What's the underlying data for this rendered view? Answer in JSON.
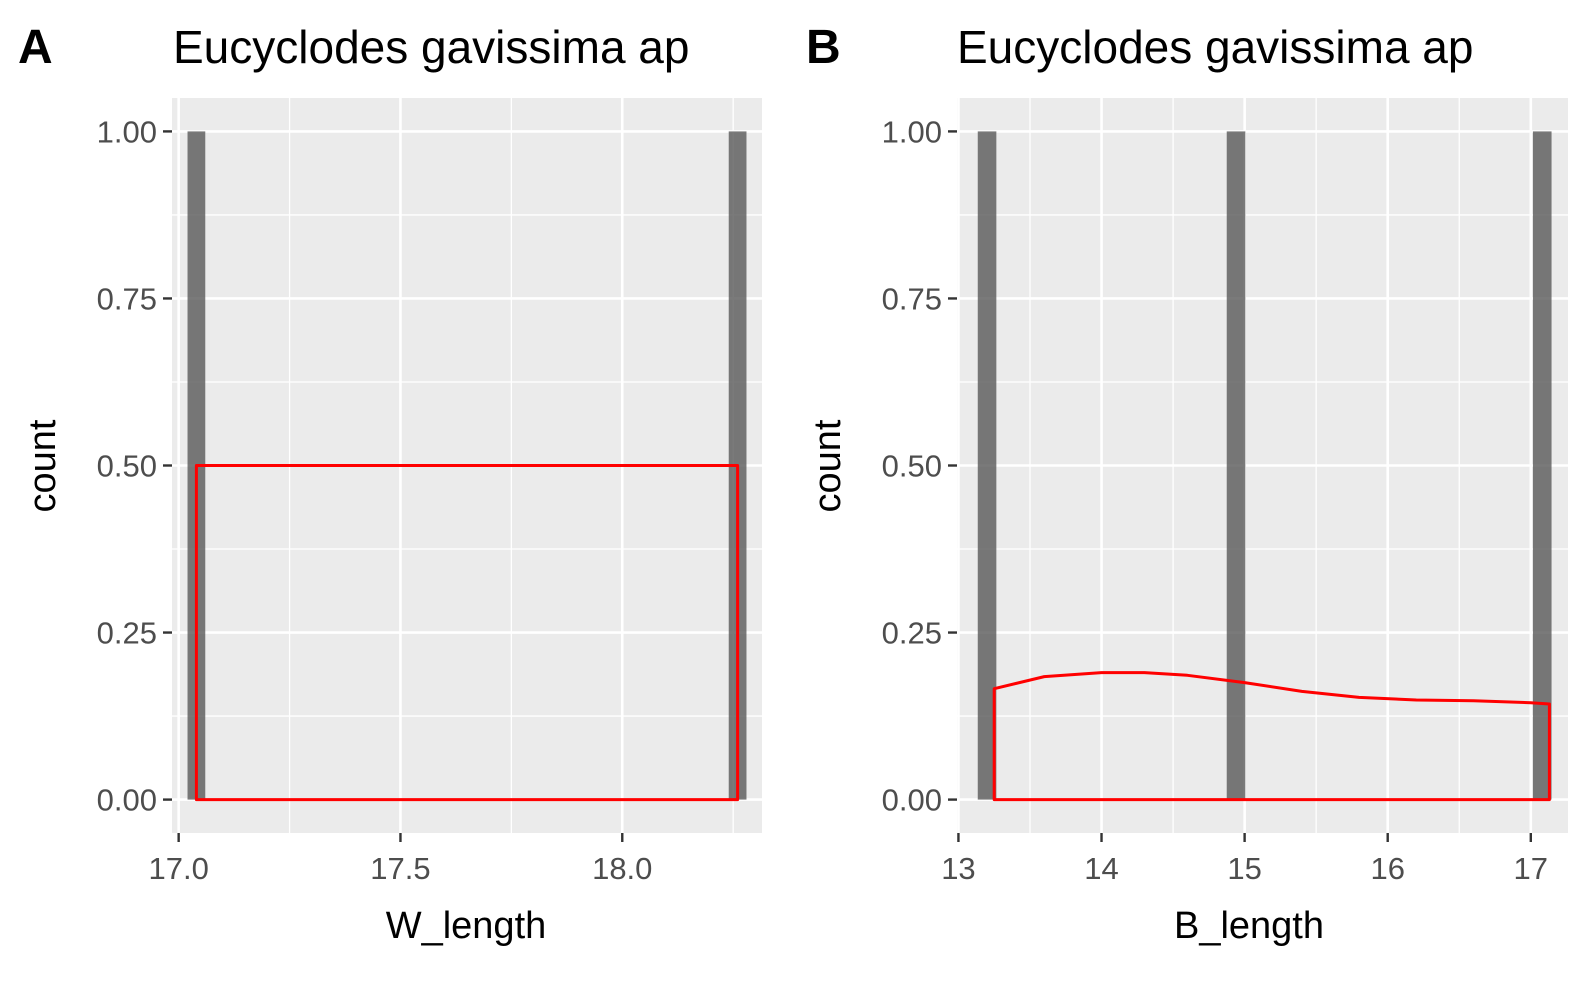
{
  "chart_data": [
    {
      "type": "bar",
      "tag": "A",
      "title": "Eucyclodes gavissima ap",
      "xlabel": "W_length",
      "ylabel": "count",
      "xlim": [
        16.985,
        18.315
      ],
      "ylim": [
        -0.05,
        1.05
      ],
      "x_ticks": [
        {
          "value": 17.0,
          "label": "17.0"
        },
        {
          "value": 17.5,
          "label": "17.5"
        },
        {
          "value": 18.0,
          "label": "18.0"
        }
      ],
      "x_minor": [
        17.25,
        17.75,
        18.25
      ],
      "y_ticks": [
        {
          "value": 0.0,
          "label": "0.00"
        },
        {
          "value": 0.25,
          "label": "0.25"
        },
        {
          "value": 0.5,
          "label": "0.50"
        },
        {
          "value": 0.75,
          "label": "0.75"
        },
        {
          "value": 1.0,
          "label": "1.00"
        }
      ],
      "bars": [
        {
          "x": 17.04,
          "width": 0.04,
          "count": 1
        },
        {
          "x": 18.26,
          "width": 0.04,
          "count": 1
        }
      ],
      "density_curve": {
        "color": "#ff0000",
        "x": [
          17.04,
          18.26
        ],
        "y": [
          0.5,
          0.5
        ]
      },
      "grid": true,
      "background": "#ebebeb",
      "bar_color": "#595959"
    },
    {
      "type": "bar",
      "tag": "B",
      "title": "Eucyclodes gavissima ap",
      "xlabel": "B_length",
      "ylabel": "count",
      "xlim": [
        12.99,
        17.26
      ],
      "ylim": [
        -0.05,
        1.05
      ],
      "x_ticks": [
        {
          "value": 13,
          "label": "13"
        },
        {
          "value": 14,
          "label": "14"
        },
        {
          "value": 15,
          "label": "15"
        },
        {
          "value": 16,
          "label": "16"
        },
        {
          "value": 17,
          "label": "17"
        }
      ],
      "x_minor": [
        13.5,
        14.5,
        15.5,
        16.5
      ],
      "y_ticks": [
        {
          "value": 0.0,
          "label": "0.00"
        },
        {
          "value": 0.25,
          "label": "0.25"
        },
        {
          "value": 0.5,
          "label": "0.50"
        },
        {
          "value": 0.75,
          "label": "0.75"
        },
        {
          "value": 1.0,
          "label": "1.00"
        }
      ],
      "bars": [
        {
          "x": 13.2,
          "width": 0.13,
          "count": 1
        },
        {
          "x": 14.94,
          "width": 0.13,
          "count": 1
        },
        {
          "x": 17.08,
          "width": 0.13,
          "count": 1
        }
      ],
      "density_curve": {
        "color": "#ff0000",
        "x": [
          13.25,
          13.6,
          14.0,
          14.3,
          14.6,
          15.0,
          15.4,
          15.8,
          16.2,
          16.6,
          17.0,
          17.13
        ],
        "y": [
          0.166,
          0.184,
          0.19,
          0.19,
          0.186,
          0.175,
          0.162,
          0.153,
          0.149,
          0.148,
          0.145,
          0.143
        ]
      },
      "grid": true,
      "background": "#ebebeb",
      "bar_color": "#595959"
    }
  ]
}
